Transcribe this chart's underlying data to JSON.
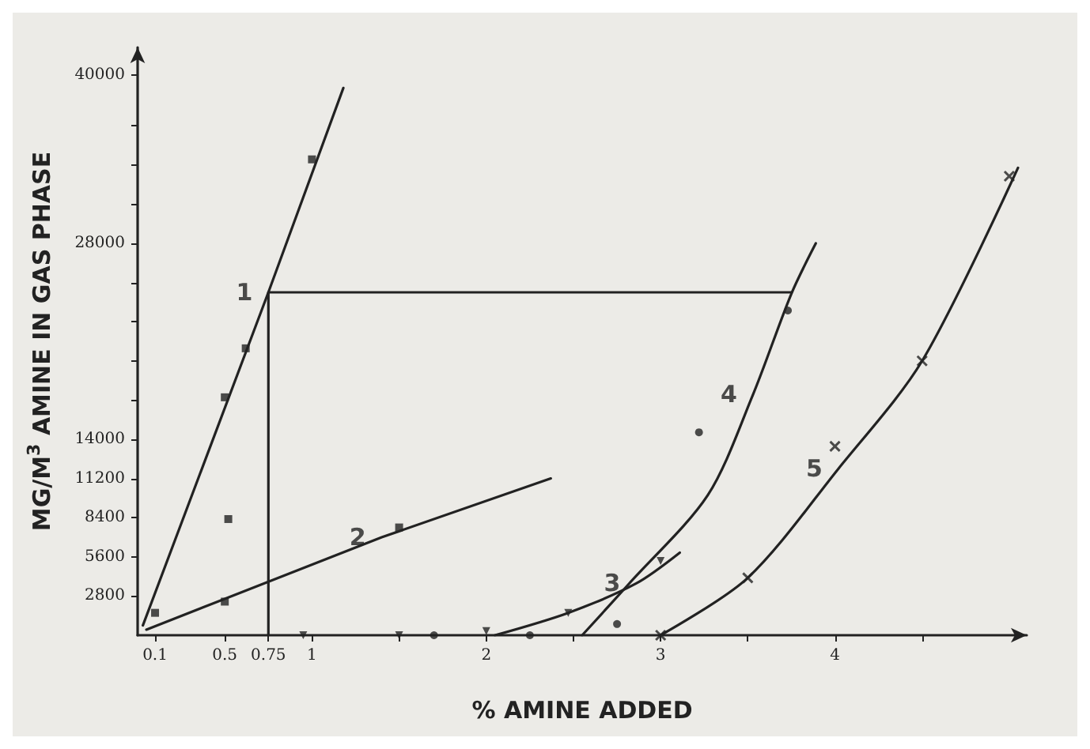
{
  "chart_data": {
    "type": "line",
    "xlabel": "% AMINE ADDED",
    "ylabel": "MG/M$^{3}$ AMINE IN GAS PHASE",
    "xlim": [
      0,
      5.1
    ],
    "ylim": [
      0,
      42000
    ],
    "xticks": [
      0.1,
      0.5,
      0.75,
      1,
      {
        "value": 1.5,
        "label": null
      },
      2,
      {
        "value": 2.5,
        "label": null
      },
      3,
      {
        "value": 3.5,
        "label": null
      },
      4,
      {
        "value": 4.5,
        "label": null
      }
    ],
    "yticks": [
      2800,
      5600,
      8400,
      11200,
      14000,
      {
        "value": 16800,
        "label": null
      },
      {
        "value": 19600,
        "label": null
      },
      {
        "value": 22400,
        "label": null
      },
      {
        "value": 25200,
        "label": null
      },
      28000,
      {
        "value": 30800,
        "label": null
      },
      {
        "value": 33600,
        "label": null
      },
      {
        "value": 36400,
        "label": null
      },
      40000
    ],
    "grid": false,
    "legend": false,
    "line_style": "solid",
    "marker": "none",
    "series": [
      {
        "name": "1",
        "color": "#222222",
        "x": [
          0.03,
          0.75,
          1.18
        ],
        "values": [
          700,
          24500,
          39100
        ]
      },
      {
        "name": "2",
        "color": "#222222",
        "x": [
          0.05,
          1.4,
          2.37
        ],
        "values": [
          400,
          7000,
          11200
        ]
      },
      {
        "name": "3",
        "color": "#222222",
        "x": [
          2.05,
          2.47,
          2.86,
          3.11
        ],
        "values": [
          0,
          1600,
          3700,
          5900
        ]
      },
      {
        "name": "4",
        "color": "#222222",
        "x": [
          2.55,
          2.82,
          3.27,
          3.53,
          3.75,
          3.89
        ],
        "values": [
          0,
          3700,
          10000,
          17200,
          24400,
          28000
        ]
      },
      {
        "name": "5",
        "color": "#222222",
        "x": [
          3.0,
          3.5,
          4.02,
          4.5,
          5.05
        ],
        "values": [
          0,
          4100,
          11900,
          19600,
          33400
        ]
      },
      {
        "color": "#222222",
        "x": [
          3.75,
          0.75,
          0.75
        ],
        "values": [
          24500,
          24500,
          0
        ]
      },
      {
        "type": "scatter",
        "marker": "square",
        "color": "#222222",
        "x": [
          0.1,
          0.5,
          0.62,
          1.0
        ],
        "values": [
          1600,
          17000,
          20500,
          34000
        ]
      },
      {
        "type": "scatter",
        "marker": "square",
        "color": "#222222",
        "x": [
          0.5,
          0.52,
          1.5
        ],
        "values": [
          2400,
          8300,
          7700
        ]
      },
      {
        "type": "scatter",
        "marker": "triangle",
        "color": "#222222",
        "x": [
          0.95,
          1.5,
          2.0,
          2.47,
          3.0
        ],
        "values": [
          0,
          0,
          300,
          1600,
          5300
        ]
      },
      {
        "type": "scatter",
        "marker": "circle",
        "color": "#222222",
        "x": [
          1.7,
          2.25,
          2.75,
          3.22,
          3.73
        ],
        "values": [
          0,
          0,
          800,
          14500,
          23200
        ]
      },
      {
        "type": "scatter",
        "marker": "cross",
        "color": "#222222",
        "x": [
          3.0,
          3.5,
          4.0,
          4.5,
          5.0
        ],
        "values": [
          0,
          4100,
          13500,
          19600,
          32800
        ]
      }
    ]
  }
}
